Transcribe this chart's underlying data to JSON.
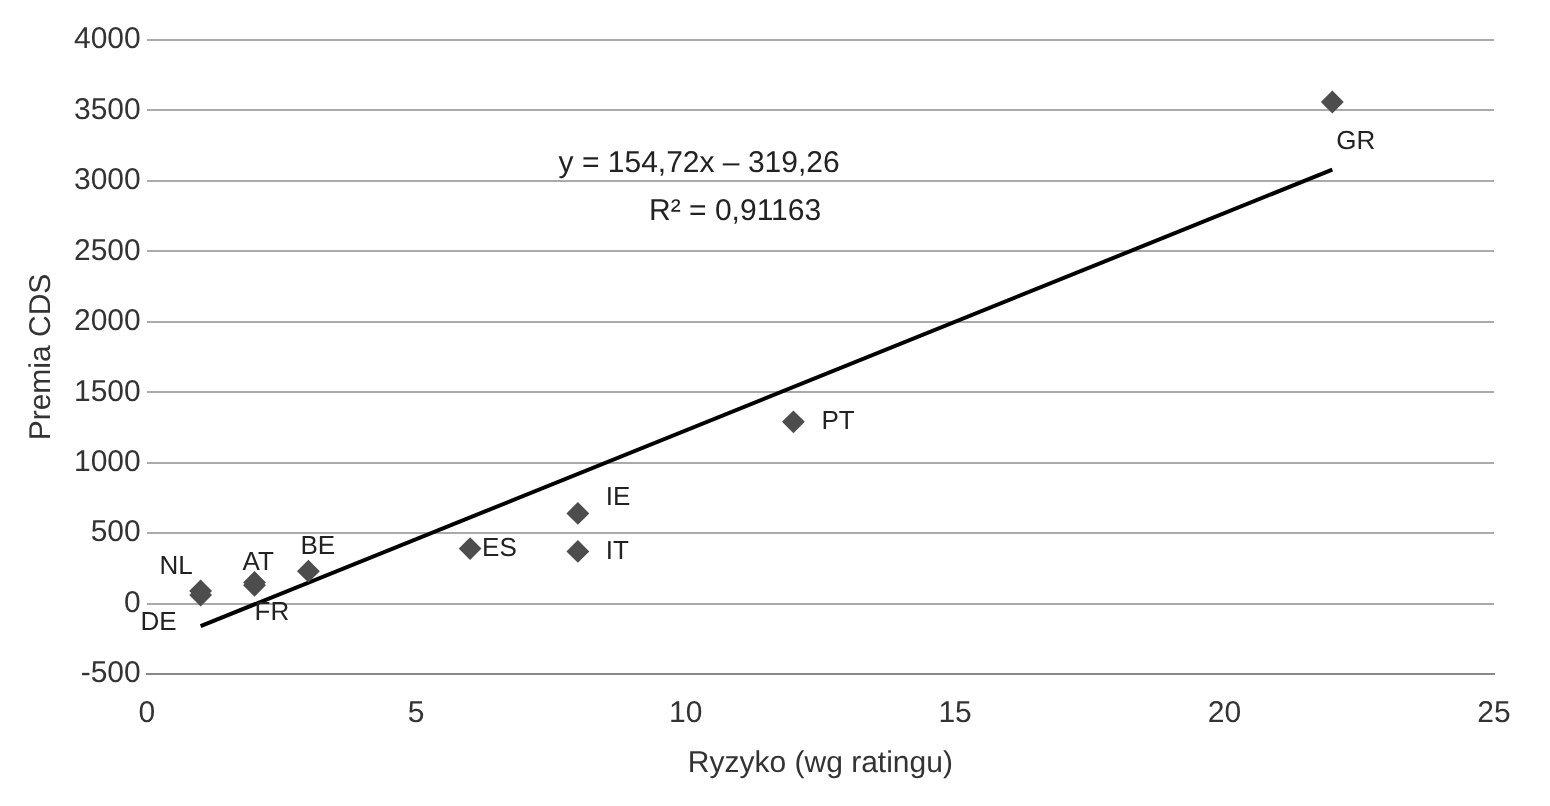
{
  "chart_data": {
    "type": "scatter",
    "xlabel": "Ryzyko (wg ratingu)",
    "ylabel": "Premia CDS",
    "x": [
      1,
      1,
      2,
      2,
      3,
      6,
      8,
      8,
      12,
      22
    ],
    "series": [
      {
        "color": "#4d4d4d",
        "values": [
          60,
          90,
          150,
          130,
          230,
          390,
          640,
          370,
          1290,
          3560
        ]
      },
      {
        "type": "line",
        "color": "#000000",
        "marker": "none",
        "x": [
          1,
          22
        ],
        "values": [
          -160,
          3080
        ]
      }
    ],
    "xlim": [
      0,
      25
    ],
    "xticks": [
      0,
      5,
      10,
      15,
      20,
      25
    ],
    "ylim": [
      -500,
      4000
    ],
    "yticks": [
      -500,
      0,
      500,
      1000,
      1500,
      2000,
      2500,
      3000,
      3500,
      4000
    ],
    "grid": "y",
    "legend": false,
    "marker": "diamond",
    "annotations": [
      "y = 154,72x – 319,26",
      "R² = 0,91163",
      {
        "text": "DE",
        "x": 1,
        "y": 60
      },
      {
        "text": "NL",
        "x": 1,
        "y": 90
      },
      {
        "text": "AT",
        "x": 2,
        "y": 150
      },
      {
        "text": "FR",
        "x": 2,
        "y": 130
      },
      {
        "text": "BE",
        "x": 3,
        "y": 230
      },
      {
        "text": "ES",
        "x": 6,
        "y": 390
      },
      {
        "text": "IE",
        "x": 8,
        "y": 640
      },
      {
        "text": "IT",
        "x": 8,
        "y": 370
      },
      {
        "text": "PT",
        "x": 12,
        "y": 1290
      },
      {
        "text": "GR",
        "x": 22,
        "y": 3560
      }
    ]
  }
}
